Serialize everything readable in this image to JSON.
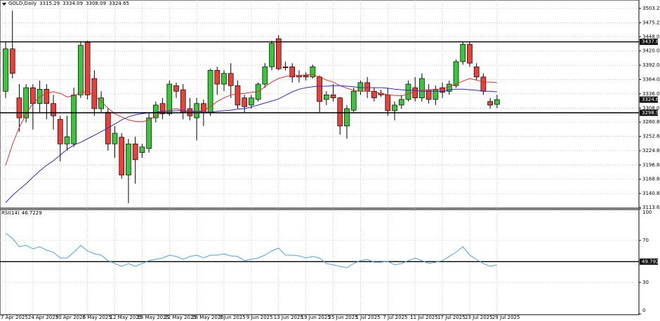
{
  "chart_data": [
    {
      "type": "candlestick",
      "title": "GOLD,Daily",
      "categories": [
        "7 Apr 2025",
        null,
        null,
        null,
        "24 Apr 2025",
        null,
        null,
        null,
        "30 Apr 2025",
        null,
        null,
        null,
        "6 May 2025",
        null,
        null,
        null,
        "12 May 2025",
        null,
        null,
        null,
        "16 May 2025",
        null,
        null,
        null,
        "22 May 2025",
        null,
        null,
        null,
        "28 May 2025",
        null,
        null,
        null,
        "3 Jun 2025",
        null,
        null,
        null,
        "9 Jun 2025",
        null,
        null,
        null,
        "13 Jun 2025",
        null,
        null,
        null,
        "19 Jun 2025",
        null,
        null,
        null,
        "25 Jun 2025",
        null,
        null,
        null,
        "1 Jul 2025",
        null,
        null,
        null,
        "7 Jul 2025",
        null,
        null,
        null,
        "11 Jul 2025",
        null,
        null,
        null,
        "17 Jul 2025",
        null,
        null,
        null,
        "23 Jul 2025",
        null,
        null,
        null,
        "29 Jul 2025"
      ],
      "open": [
        3341,
        3424,
        3328,
        3289,
        3348,
        3317,
        3345,
        3317,
        3286,
        3238,
        3238,
        3334,
        3437,
        3366,
        3307,
        3300,
        3238,
        3251,
        3177,
        3238,
        3221,
        3229,
        3289,
        3317,
        3297,
        3352,
        3344,
        3307,
        3289,
        3317,
        3300,
        3382,
        3355,
        3376,
        3352,
        3328,
        3314,
        3325,
        3355,
        3389,
        3444,
        3389,
        3389,
        3372,
        3372,
        3369,
        3369,
        3325,
        3334,
        3328,
        3273,
        3304,
        3341,
        3358,
        3341,
        3337,
        3334,
        3303,
        3314,
        3325,
        3348,
        3328,
        3344,
        3325,
        3348,
        3341,
        3352,
        3399,
        3433,
        3389,
        3369,
        3321,
        3315.29
      ],
      "high": [
        3437,
        3499,
        3355,
        3355,
        3355,
        3362,
        3355,
        3334,
        3293,
        3293,
        3348,
        3437,
        3440,
        3382,
        3341,
        3307,
        3273,
        3259,
        3248,
        3252,
        3238,
        3300,
        3321,
        3328,
        3362,
        3358,
        3355,
        3328,
        3328,
        3325,
        3385,
        3389,
        3382,
        3396,
        3362,
        3334,
        3334,
        3358,
        3396,
        3440,
        3451,
        3399,
        3396,
        3382,
        3378,
        3393,
        3372,
        3341,
        3355,
        3330,
        3314,
        3348,
        3362,
        3369,
        3348,
        3344,
        3348,
        3321,
        3334,
        3362,
        3369,
        3376,
        3355,
        3352,
        3358,
        3362,
        3403,
        3437,
        3437,
        3396,
        3376,
        3328,
        3334.09
      ],
      "low": [
        3328,
        3366,
        3262,
        3280,
        3266,
        3300,
        3286,
        3266,
        3204,
        3225,
        3232,
        3328,
        3325,
        3293,
        3300,
        3225,
        3211,
        3170,
        3122,
        3160,
        3211,
        3221,
        3280,
        3286,
        3293,
        3328,
        3286,
        3284,
        3245,
        3273,
        3293,
        3334,
        3341,
        3328,
        3307,
        3300,
        3307,
        3321,
        3348,
        3382,
        3382,
        3382,
        3358,
        3358,
        3362,
        3366,
        3300,
        3314,
        3321,
        3256,
        3248,
        3300,
        3334,
        3328,
        3321,
        3330,
        3293,
        3284,
        3307,
        3321,
        3321,
        3321,
        3317,
        3314,
        3328,
        3334,
        3348,
        3393,
        3389,
        3362,
        3334,
        3307,
        3308.09
      ],
      "close": [
        3424,
        3376,
        3289,
        3348,
        3317,
        3345,
        3317,
        3293,
        3238,
        3252,
        3334,
        3431,
        3334,
        3307,
        3328,
        3238,
        3259,
        3177,
        3238,
        3207,
        3232,
        3289,
        3314,
        3297,
        3355,
        3341,
        3300,
        3293,
        3317,
        3300,
        3382,
        3355,
        3376,
        3352,
        3314,
        3311,
        3328,
        3355,
        3389,
        3435,
        3385,
        3387,
        3369,
        3369,
        3369,
        3389,
        3321,
        3334,
        3328,
        3273,
        3307,
        3341,
        3358,
        3341,
        3328,
        3334,
        3303,
        3314,
        3325,
        3355,
        3328,
        3366,
        3325,
        3344,
        3339,
        3355,
        3399,
        3433,
        3396,
        3369,
        3341,
        3314,
        3324.65
      ],
      "up_color": "#3cc43c",
      "down_color": "#e8413c",
      "series": [
        {
          "color": "#e0302a",
          "values": [
            3196,
            3237,
            3270,
            3297,
            3317,
            3330,
            3337,
            3340,
            3337,
            3330,
            3332,
            3339,
            3341,
            3332,
            3322,
            3308,
            3297,
            3291,
            3285,
            3282,
            3281,
            3285,
            3293,
            3300,
            3304,
            3307,
            3303,
            3300,
            3302,
            3303,
            3311,
            3321,
            3328,
            3334,
            3336,
            3337,
            3339,
            3340,
            3350,
            3359,
            3366,
            3370,
            3372,
            3372,
            3373,
            3374,
            3369,
            3363,
            3359,
            3352,
            3347,
            3343,
            3341,
            3341,
            3340,
            3337,
            3334,
            3333,
            3332,
            3336,
            3341,
            3343,
            3344,
            3345,
            3345,
            3350,
            3355,
            3361,
            3366,
            3363,
            3359,
            3359,
            3358
          ]
        },
        {
          "color": "#2a2ad0",
          "values": [
            3123,
            3137,
            3149,
            3160,
            3173,
            3185,
            3196,
            3205,
            3216,
            3227,
            3236,
            3241,
            3248,
            3255,
            3262,
            3269,
            3277,
            3285,
            3291,
            3295,
            3297,
            3299,
            3300,
            3302,
            3302,
            3303,
            3303,
            3302,
            3302,
            3300,
            3300,
            3302,
            3303,
            3304,
            3306,
            3307,
            3310,
            3314,
            3318,
            3322,
            3326,
            3333,
            3340,
            3345,
            3348,
            3350,
            3351,
            3351,
            3352,
            3352,
            3351,
            3350,
            3348,
            3348,
            3348,
            3348,
            3347,
            3345,
            3344,
            3343,
            3343,
            3341,
            3341,
            3341,
            3341,
            3344,
            3345,
            3345,
            3344,
            3343,
            3341,
            3341,
            3340
          ]
        }
      ],
      "hlines": [
        3437.84,
        3298.96
      ],
      "ylim": [
        3112.2,
        3519.7
      ],
      "yticks": [
        {
          "value": 3113.6,
          "label": "3113.60"
        },
        {
          "value": 3140.8,
          "label": "3140.80"
        },
        {
          "value": 3168.8,
          "label": "3168.80"
        },
        {
          "value": 3196.8,
          "label": "3196.80"
        },
        {
          "value": 3224.8,
          "label": "3224.80"
        },
        {
          "value": 3252.8,
          "label": "3252.80"
        },
        {
          "value": 3280.8,
          "label": "3280.80"
        },
        {
          "value": 3308,
          "label": "3308.00"
        },
        {
          "value": 3336,
          "label": "3336.00"
        },
        {
          "value": 3364,
          "label": "3364.00"
        },
        {
          "value": 3392,
          "label": "3392.00"
        },
        {
          "value": 3420,
          "label": "3420.00"
        },
        {
          "value": 3448,
          "label": "3448.00"
        },
        {
          "value": 3475.2,
          "label": "3475.20"
        },
        {
          "value": 3503.2,
          "label": "3503.20"
        }
      ],
      "grid": true
    },
    {
      "type": "line",
      "title": "RSI(14)",
      "color": "#4aa3e0",
      "values": [
        76.7,
        72,
        64,
        65.3,
        62,
        64,
        60.7,
        58.7,
        53.3,
        53.3,
        58.7,
        65.3,
        60,
        57.3,
        56,
        50.7,
        48,
        45.3,
        48,
        45.3,
        48,
        50.7,
        52,
        53.3,
        56,
        54.7,
        52,
        54.7,
        56,
        53.3,
        56,
        56,
        57.3,
        55.3,
        54.7,
        50.7,
        52,
        53.3,
        56,
        60,
        62.7,
        56,
        56,
        55.3,
        53.3,
        54.7,
        53.3,
        48,
        46.7,
        45.3,
        44,
        48,
        50.7,
        52,
        49.3,
        49.3,
        50,
        46.7,
        48,
        50.7,
        53.3,
        50.7,
        48,
        49.3,
        50.7,
        54.7,
        58.7,
        64,
        56,
        52,
        48,
        45.3,
        46.7229
      ],
      "level": 49.7925,
      "ylim": [
        0,
        100
      ],
      "yticks": [
        0,
        30,
        70,
        100
      ],
      "grid": true
    }
  ]
}
